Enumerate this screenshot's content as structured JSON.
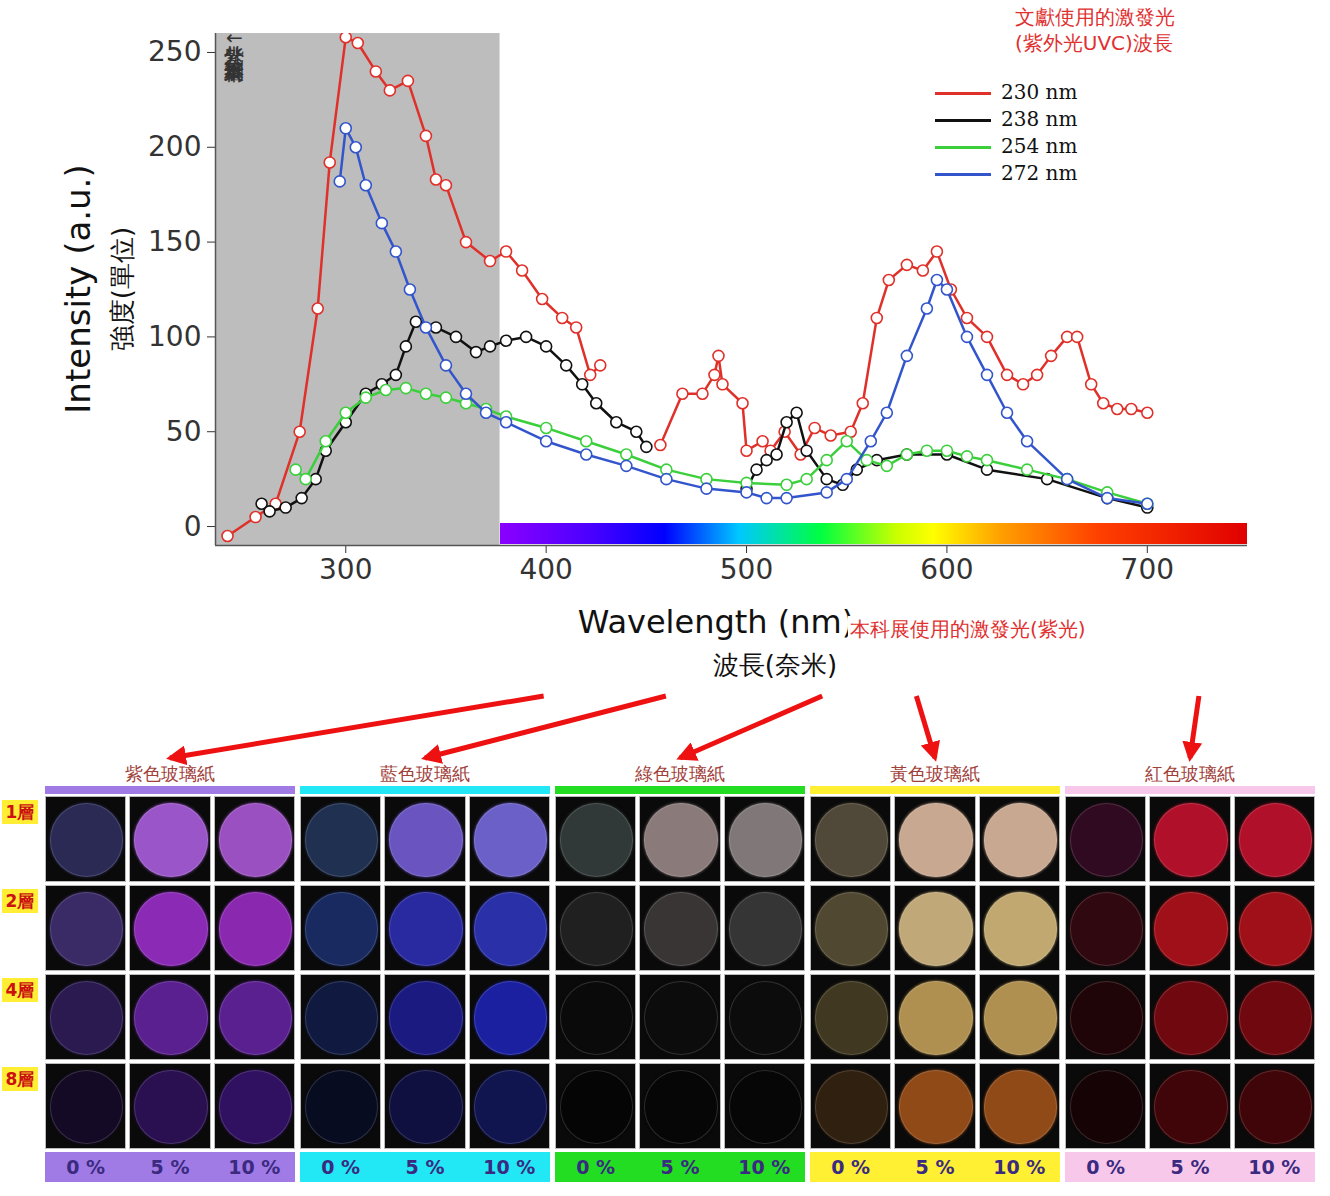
{
  "chart_data": {
    "type": "line",
    "x_label": "Wavelength (nm)",
    "x_label_zh": "波長(奈米)",
    "y_label": "Intensity (a.u.)",
    "y_label_zh": "強度(單位)",
    "shaded_note": "紫外光↓本科展量不到",
    "excitation_note": "本科展使用的激發光(紫光)",
    "legend_title": [
      "文獻使用的激發光",
      "(紫外光UVC)波長"
    ],
    "legend": "top-right",
    "grid": false,
    "marker": "circle",
    "line_style": "solid",
    "xlim": [
      235,
      750
    ],
    "ylim": [
      -10,
      260
    ],
    "xticks": [
      300,
      400,
      500,
      600,
      700
    ],
    "yticks": [
      0,
      50,
      100,
      150,
      200,
      250
    ],
    "shaded_range": [
      235,
      377
    ],
    "spectrum_range": [
      377,
      750
    ],
    "series": [
      {
        "name": "230 nm",
        "color": "#e0302a",
        "x": [
          241,
          255,
          265,
          277,
          286,
          292,
          300,
          306,
          315,
          322,
          331,
          340,
          345,
          350,
          360,
          372,
          380,
          388,
          398,
          408,
          415,
          422,
          427,
          440,
          457,
          468,
          478,
          484,
          486,
          488,
          498,
          500,
          508,
          512,
          519,
          527,
          534,
          542,
          552,
          558,
          565,
          571,
          580,
          588,
          595,
          602,
          610,
          620,
          630,
          638,
          645,
          652,
          660,
          665,
          672,
          678,
          685,
          692,
          700
        ],
        "values": [
          -5,
          5,
          12,
          50,
          115,
          192,
          258,
          255,
          240,
          230,
          235,
          206,
          183,
          180,
          150,
          140,
          145,
          135,
          120,
          110,
          105,
          80,
          85,
          null,
          43,
          70,
          70,
          80,
          90,
          75,
          65,
          40,
          45,
          40,
          50,
          38,
          52,
          48,
          50,
          65,
          110,
          130,
          138,
          135,
          145,
          125,
          110,
          100,
          80,
          75,
          80,
          90,
          100,
          100,
          75,
          65,
          62,
          62,
          60
        ]
      },
      {
        "name": "238 nm",
        "color": "#111111",
        "x": [
          258,
          262,
          270,
          278,
          285,
          290,
          300,
          310,
          318,
          325,
          330,
          335,
          345,
          355,
          365,
          372,
          380,
          390,
          400,
          410,
          418,
          425,
          435,
          445,
          450,
          470,
          500,
          505,
          510,
          515,
          520,
          525,
          530,
          540,
          548,
          555,
          565,
          580,
          600,
          620,
          650,
          680,
          700
        ],
        "values": [
          12,
          8,
          10,
          15,
          25,
          40,
          55,
          70,
          75,
          80,
          95,
          108,
          105,
          100,
          92,
          95,
          98,
          100,
          95,
          85,
          75,
          65,
          55,
          50,
          42,
          null,
          20,
          30,
          35,
          38,
          55,
          60,
          40,
          25,
          22,
          30,
          35,
          38,
          38,
          30,
          25,
          15,
          10
        ]
      },
      {
        "name": "254 nm",
        "color": "#3ccf3c",
        "x": [
          275,
          280,
          290,
          300,
          310,
          320,
          330,
          340,
          350,
          360,
          370,
          380,
          400,
          420,
          440,
          460,
          480,
          500,
          520,
          530,
          540,
          550,
          560,
          570,
          580,
          590,
          600,
          610,
          620,
          640,
          660,
          680,
          700
        ],
        "values": [
          30,
          25,
          45,
          60,
          68,
          72,
          73,
          70,
          68,
          65,
          62,
          58,
          52,
          45,
          38,
          30,
          25,
          23,
          22,
          25,
          35,
          45,
          35,
          32,
          38,
          40,
          40,
          37,
          35,
          30,
          25,
          18,
          12
        ]
      },
      {
        "name": "272 nm",
        "color": "#3355cc",
        "x": [
          297,
          300,
          305,
          310,
          318,
          325,
          332,
          340,
          350,
          360,
          370,
          380,
          400,
          420,
          440,
          460,
          480,
          500,
          510,
          520,
          540,
          550,
          562,
          570,
          580,
          590,
          595,
          600,
          610,
          620,
          630,
          640,
          660,
          680,
          700
        ],
        "values": [
          182,
          210,
          200,
          180,
          160,
          145,
          125,
          105,
          85,
          70,
          60,
          55,
          45,
          38,
          32,
          25,
          20,
          18,
          15,
          15,
          18,
          25,
          45,
          60,
          90,
          115,
          130,
          125,
          100,
          80,
          60,
          45,
          25,
          15,
          12
        ]
      }
    ]
  },
  "photo_grid": {
    "rows": [
      "1層",
      "2層",
      "4層",
      "8層"
    ],
    "columns": [
      "0 %",
      "5 %",
      "10 %"
    ],
    "panels": [
      {
        "title": "紫色玻璃紙",
        "color": "#a07be6",
        "wavelength": 399,
        "cell_colors": [
          [
            "#2a2a55",
            "#9a55c8",
            "#9a50c0"
          ],
          [
            "#3a2a66",
            "#8a2ab5",
            "#8a28b0"
          ],
          [
            "#2a1a50",
            "#5a2090",
            "#5a2090"
          ],
          [
            "#150a25",
            "#2a1050",
            "#301060"
          ]
        ]
      },
      {
        "title": "藍色玻璃紙",
        "color": "#22e8f5",
        "wavelength": 460,
        "cell_colors": [
          [
            "#203050",
            "#6a55c0",
            "#6a60c8"
          ],
          [
            "#182a60",
            "#2a2aa0",
            "#2a30a8"
          ],
          [
            "#101a40",
            "#1a1a80",
            "#1a20a0"
          ],
          [
            "#080c20",
            "#101040",
            "#101550"
          ]
        ]
      },
      {
        "title": "綠色玻璃紙",
        "color": "#22dd22",
        "wavelength": 538,
        "cell_colors": [
          [
            "#303838",
            "#8a7a7a",
            "#807878"
          ],
          [
            "#202020",
            "#3a3535",
            "#353535"
          ],
          [
            "#0a0a0a",
            "#0c0c0c",
            "#0c0c0c"
          ],
          [
            "#050505",
            "#060606",
            "#060606"
          ]
        ]
      },
      {
        "title": "黃色玻璃紙",
        "color": "#fff033",
        "wavelength": 585,
        "cell_colors": [
          [
            "#504838",
            "#c8a890",
            "#c8a890"
          ],
          [
            "#504830",
            "#c0a878",
            "#c0a870"
          ],
          [
            "#403820",
            "#b09050",
            "#b09050"
          ],
          [
            "#302010",
            "#904a18",
            "#904a18"
          ]
        ]
      },
      {
        "title": "紅色玻璃紙",
        "color": "#f8c8ea",
        "wavelength": 726,
        "cell_colors": [
          [
            "#300a20",
            "#b0102a",
            "#b0102a"
          ],
          [
            "#300810",
            "#a01018",
            "#a01018"
          ],
          [
            "#200508",
            "#700810",
            "#700810"
          ],
          [
            "#150305",
            "#400508",
            "#400508"
          ]
        ]
      }
    ]
  }
}
